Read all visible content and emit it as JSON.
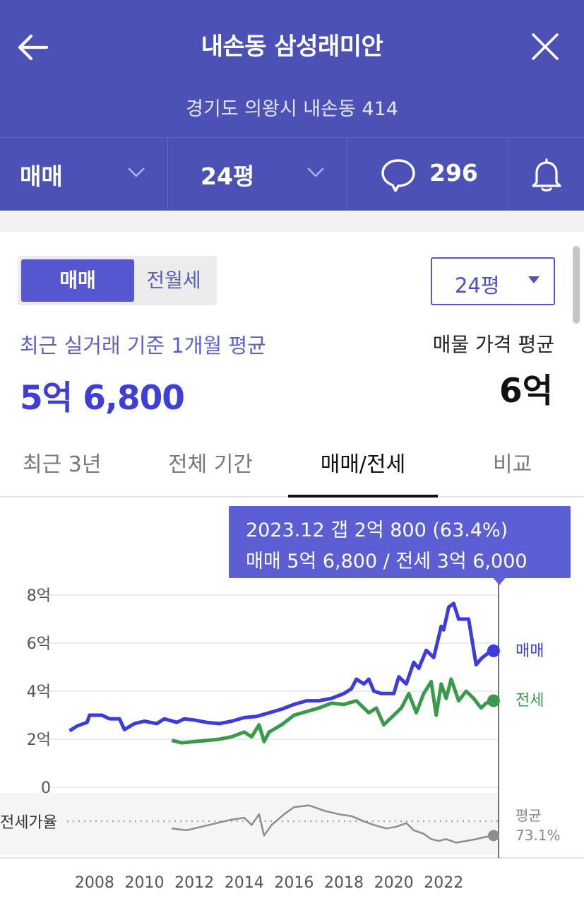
{
  "header": {
    "title": "내손동 삼성래미안",
    "address": "경기도 의왕시 내손동 414",
    "deal_type": "매매",
    "size": "24평",
    "comment_count": "296",
    "icons": [
      "back-arrow-icon",
      "close-icon",
      "chevron-down-icon",
      "comment-icon",
      "bell-icon"
    ]
  },
  "segment": {
    "active": "매매",
    "inactive": "전월세"
  },
  "size_select": {
    "value": "24평"
  },
  "summary": {
    "recent_label": "최근 실거래 기준 1개월 평균",
    "recent_price": "5억 6,800",
    "listing_label": "매물 가격 평균",
    "listing_price": "6억"
  },
  "tabs": [
    {
      "label": "최근 3년"
    },
    {
      "label": "전체 기간"
    },
    {
      "label": "매매/전세",
      "active": true
    },
    {
      "label": "비교"
    }
  ],
  "tooltip": {
    "line1": "2023.12  갭 2억 800 (63.4%)",
    "line2": "매매 5억 6,800 / 전세 3억 6,000"
  },
  "colors": {
    "header": "#4b51b5",
    "sale": "#3b3be0",
    "jeonse": "#3a9a4c",
    "ratio": "#8d8d8d",
    "accent": "#5457cf"
  },
  "chart_data": {
    "type": "line",
    "y_ticks": [
      "8억",
      "6억",
      "4억",
      "2억",
      "0"
    ],
    "ylim_eok": [
      0,
      8
    ],
    "x_ticks": [
      "2008",
      "2010",
      "2012",
      "2014",
      "2016",
      "2018",
      "2020",
      "2022"
    ],
    "xlim": [
      2006.9,
      2024.2
    ],
    "grid": true,
    "series": [
      {
        "name": "매매",
        "unit": "억",
        "points": [
          [
            2007.0,
            2.35
          ],
          [
            2007.3,
            2.55
          ],
          [
            2007.7,
            2.7
          ],
          [
            2007.8,
            3.0
          ],
          [
            2008.3,
            3.0
          ],
          [
            2008.6,
            2.85
          ],
          [
            2009.0,
            2.85
          ],
          [
            2009.2,
            2.4
          ],
          [
            2009.6,
            2.65
          ],
          [
            2010.0,
            2.75
          ],
          [
            2010.5,
            2.65
          ],
          [
            2010.8,
            2.85
          ],
          [
            2011.3,
            2.7
          ],
          [
            2011.6,
            2.85
          ],
          [
            2012.0,
            2.8
          ],
          [
            2012.5,
            2.7
          ],
          [
            2013.0,
            2.65
          ],
          [
            2013.5,
            2.75
          ],
          [
            2014.0,
            2.9
          ],
          [
            2014.5,
            2.95
          ],
          [
            2015.0,
            3.1
          ],
          [
            2015.5,
            3.25
          ],
          [
            2016.0,
            3.45
          ],
          [
            2016.5,
            3.6
          ],
          [
            2017.0,
            3.6
          ],
          [
            2017.5,
            3.7
          ],
          [
            2018.0,
            3.9
          ],
          [
            2018.3,
            4.1
          ],
          [
            2018.5,
            4.5
          ],
          [
            2018.8,
            4.3
          ],
          [
            2019.0,
            4.5
          ],
          [
            2019.2,
            4.0
          ],
          [
            2019.5,
            3.9
          ],
          [
            2020.0,
            3.9
          ],
          [
            2020.2,
            4.6
          ],
          [
            2020.5,
            4.3
          ],
          [
            2020.8,
            5.2
          ],
          [
            2021.0,
            4.95
          ],
          [
            2021.3,
            5.7
          ],
          [
            2021.6,
            5.4
          ],
          [
            2021.9,
            6.7
          ],
          [
            2022.0,
            6.55
          ],
          [
            2022.2,
            7.5
          ],
          [
            2022.4,
            7.65
          ],
          [
            2022.6,
            7.0
          ],
          [
            2023.0,
            7.0
          ],
          [
            2023.3,
            5.1
          ],
          [
            2023.5,
            5.35
          ],
          [
            2023.8,
            5.6
          ],
          [
            2024.0,
            5.68
          ]
        ]
      },
      {
        "name": "전세",
        "unit": "억",
        "points": [
          [
            2011.1,
            1.95
          ],
          [
            2011.5,
            1.85
          ],
          [
            2012.0,
            1.9
          ],
          [
            2012.5,
            1.95
          ],
          [
            2013.0,
            2.0
          ],
          [
            2013.5,
            2.1
          ],
          [
            2014.0,
            2.3
          ],
          [
            2014.3,
            2.1
          ],
          [
            2014.6,
            2.6
          ],
          [
            2014.8,
            1.9
          ],
          [
            2015.0,
            2.3
          ],
          [
            2015.5,
            2.6
          ],
          [
            2016.0,
            3.0
          ],
          [
            2016.5,
            3.15
          ],
          [
            2017.0,
            3.3
          ],
          [
            2017.5,
            3.5
          ],
          [
            2018.0,
            3.45
          ],
          [
            2018.5,
            3.6
          ],
          [
            2019.0,
            3.1
          ],
          [
            2019.3,
            3.3
          ],
          [
            2019.6,
            2.6
          ],
          [
            2020.0,
            3.0
          ],
          [
            2020.3,
            3.3
          ],
          [
            2020.6,
            3.9
          ],
          [
            2020.9,
            3.1
          ],
          [
            2021.2,
            3.9
          ],
          [
            2021.5,
            4.4
          ],
          [
            2021.7,
            3.0
          ],
          [
            2021.9,
            4.3
          ],
          [
            2022.1,
            3.7
          ],
          [
            2022.3,
            4.5
          ],
          [
            2022.6,
            3.6
          ],
          [
            2022.9,
            4.0
          ],
          [
            2023.2,
            3.7
          ],
          [
            2023.5,
            3.3
          ],
          [
            2023.7,
            3.5
          ],
          [
            2024.0,
            3.6
          ]
        ]
      },
      {
        "name": "전세가율",
        "summary_label": "평균",
        "summary_value": "73.1%",
        "points": [
          [
            2011.1,
            70
          ],
          [
            2011.7,
            69
          ],
          [
            2012.3,
            71
          ],
          [
            2012.9,
            73
          ],
          [
            2013.5,
            75
          ],
          [
            2014.0,
            76
          ],
          [
            2014.3,
            72
          ],
          [
            2014.6,
            78
          ],
          [
            2014.8,
            66
          ],
          [
            2015.1,
            72
          ],
          [
            2015.6,
            78
          ],
          [
            2016.0,
            82
          ],
          [
            2016.6,
            83
          ],
          [
            2017.2,
            80
          ],
          [
            2017.8,
            78
          ],
          [
            2018.3,
            77
          ],
          [
            2018.8,
            74
          ],
          [
            2019.2,
            72
          ],
          [
            2019.7,
            70
          ],
          [
            2020.1,
            71
          ],
          [
            2020.5,
            73
          ],
          [
            2020.8,
            69
          ],
          [
            2021.2,
            67
          ],
          [
            2021.5,
            64
          ],
          [
            2021.8,
            63
          ],
          [
            2022.1,
            64
          ],
          [
            2022.5,
            62
          ],
          [
            2022.9,
            63
          ],
          [
            2023.3,
            64
          ],
          [
            2023.6,
            65
          ],
          [
            2024.0,
            66
          ]
        ]
      }
    ],
    "end_labels": [
      "매매",
      "전세"
    ],
    "ratio_axis_label": "전세가율"
  }
}
